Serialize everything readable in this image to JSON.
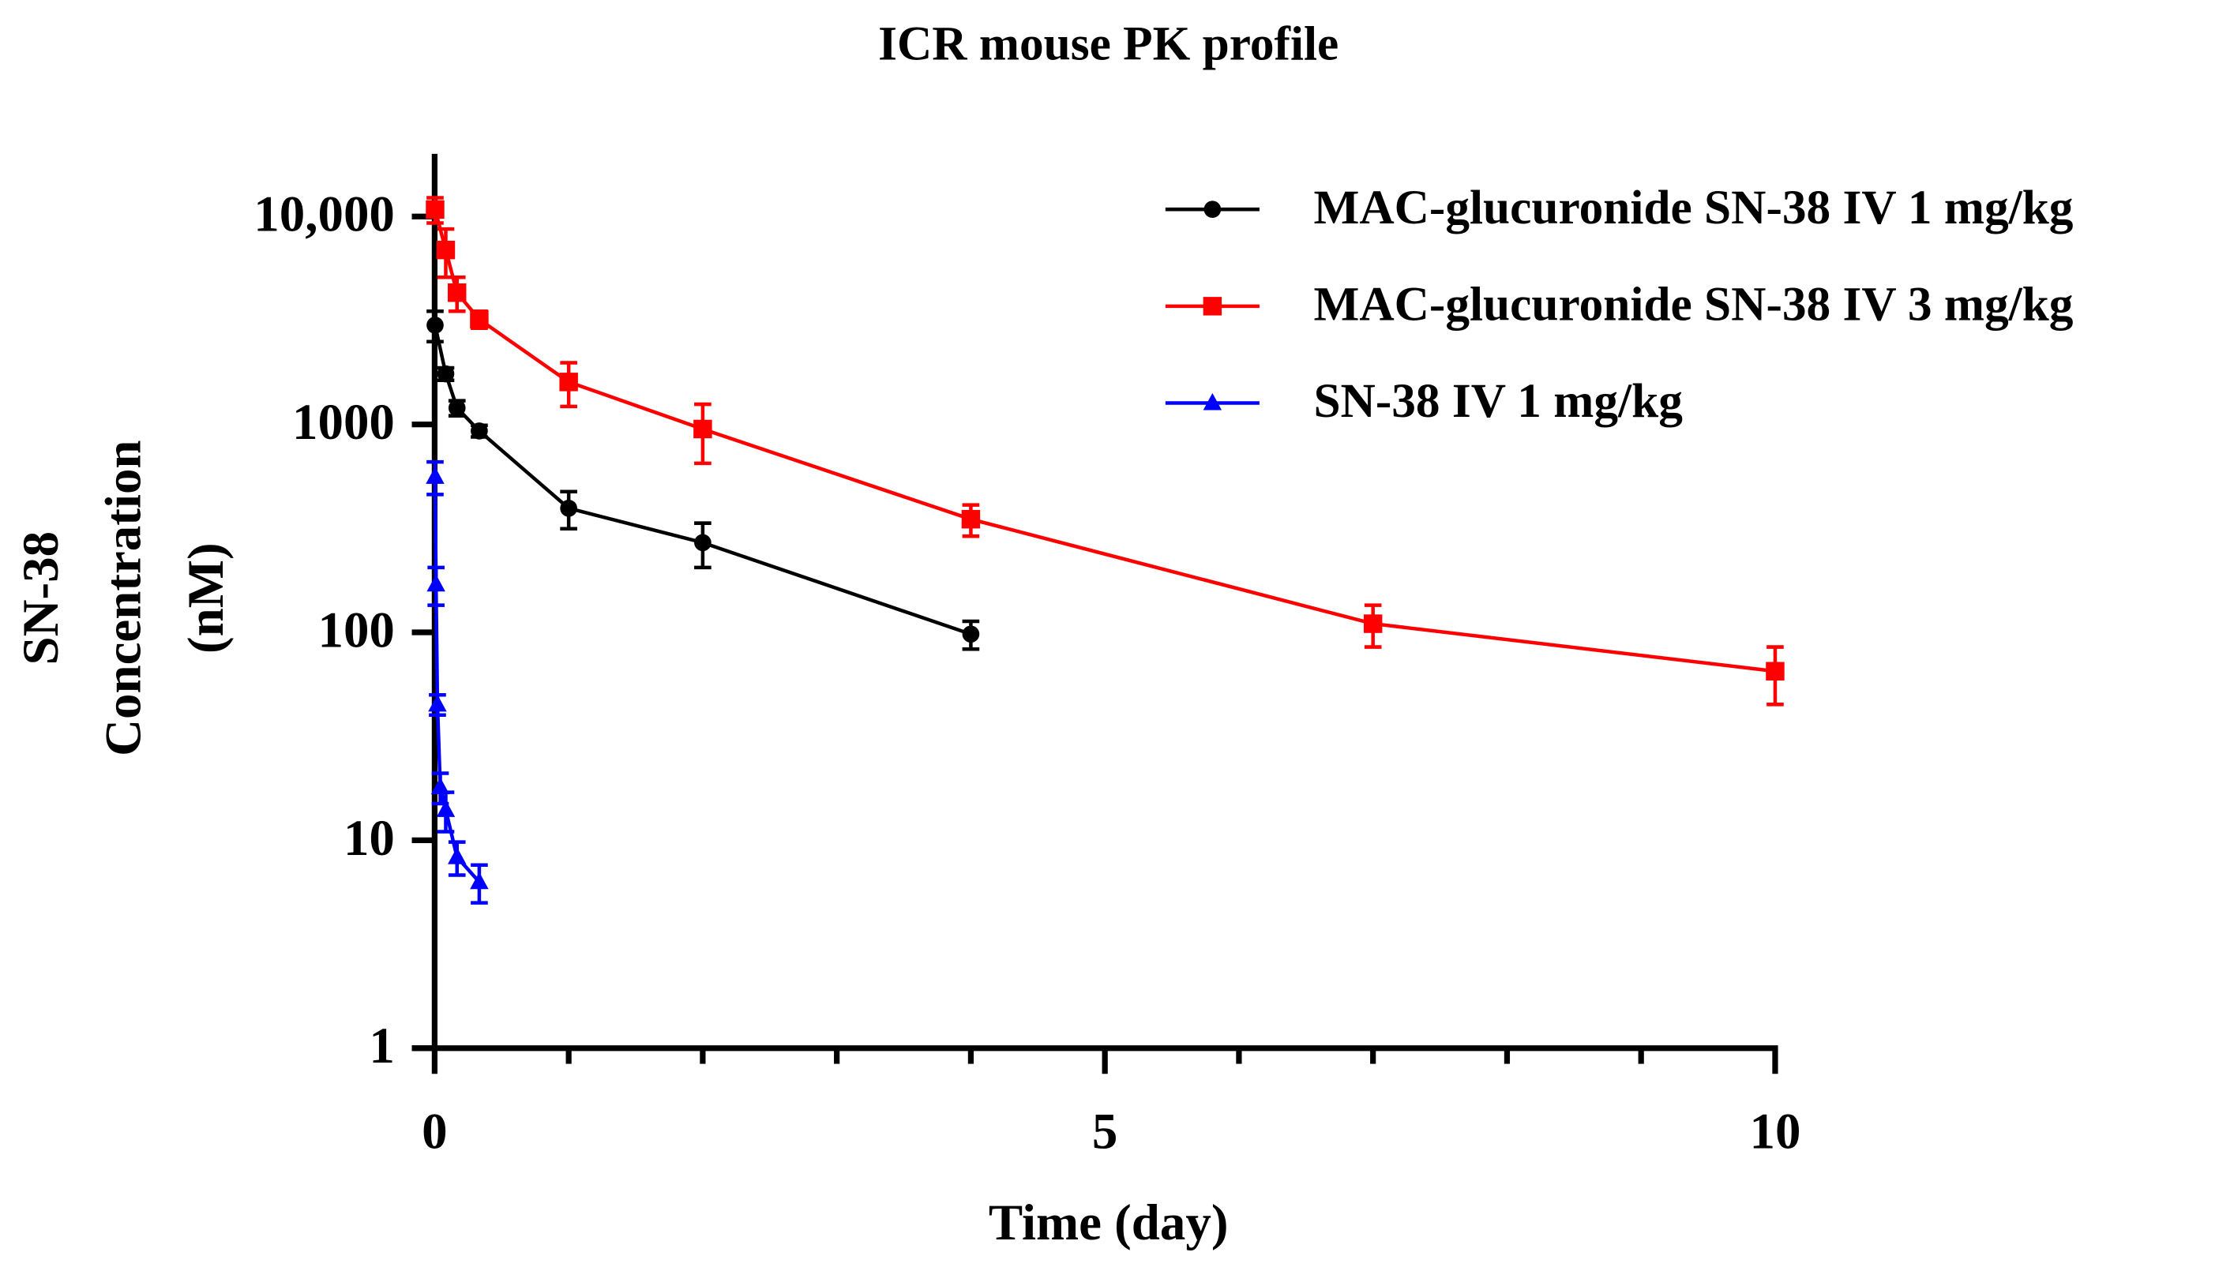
{
  "chart_data": {
    "type": "line",
    "title": "ICR mouse PK profile",
    "xlabel": "Time (day)",
    "ylabel": [
      "SN-38",
      "Concentration",
      "(nM)"
    ],
    "log_y": true,
    "xlim": [
      0,
      10
    ],
    "xticks": [
      0,
      5,
      10
    ],
    "xminorticks": [
      1,
      2,
      3,
      4,
      6,
      7,
      8,
      9
    ],
    "ylim": [
      1,
      20000
    ],
    "yticks": [
      1,
      10,
      100,
      1000,
      {
        "value": 10000,
        "label": "10,000"
      }
    ],
    "legend": "upper right",
    "series": [
      {
        "name": "MAC-glucuronide SN-38 IV 1 mg/kg",
        "color": "#000000",
        "marker": "circle",
        "x": [
          0.0035,
          0.083,
          0.167,
          0.333,
          1,
          2,
          4
        ],
        "values": [
          3000,
          1750,
          1200,
          930,
          395,
          270,
          98
        ],
        "errors": [
          500,
          120,
          100,
          60,
          80,
          65,
          15
        ]
      },
      {
        "name": "MAC-glucuronide SN-38 IV 3 mg/kg",
        "color": "#ff0000",
        "marker": "square",
        "x": [
          0.0035,
          0.083,
          0.167,
          0.333,
          1,
          2,
          4,
          7,
          10
        ],
        "values": [
          10800,
          6900,
          4300,
          3200,
          1600,
          950,
          350,
          110,
          65
        ],
        "errors": [
          1500,
          1800,
          800,
          300,
          380,
          300,
          60,
          25,
          20
        ]
      },
      {
        "name": "SN-38 IV 1 mg/kg",
        "color": "#0000ff",
        "marker": "triangle",
        "x": [
          0.0035,
          0.0104,
          0.021,
          0.042,
          0.083,
          0.167,
          0.333
        ],
        "values": [
          560,
          170,
          45,
          18,
          14,
          8.3,
          6.3
        ],
        "errors": [
          100,
          35,
          5,
          3,
          3,
          1.5,
          1.3
        ]
      }
    ]
  }
}
